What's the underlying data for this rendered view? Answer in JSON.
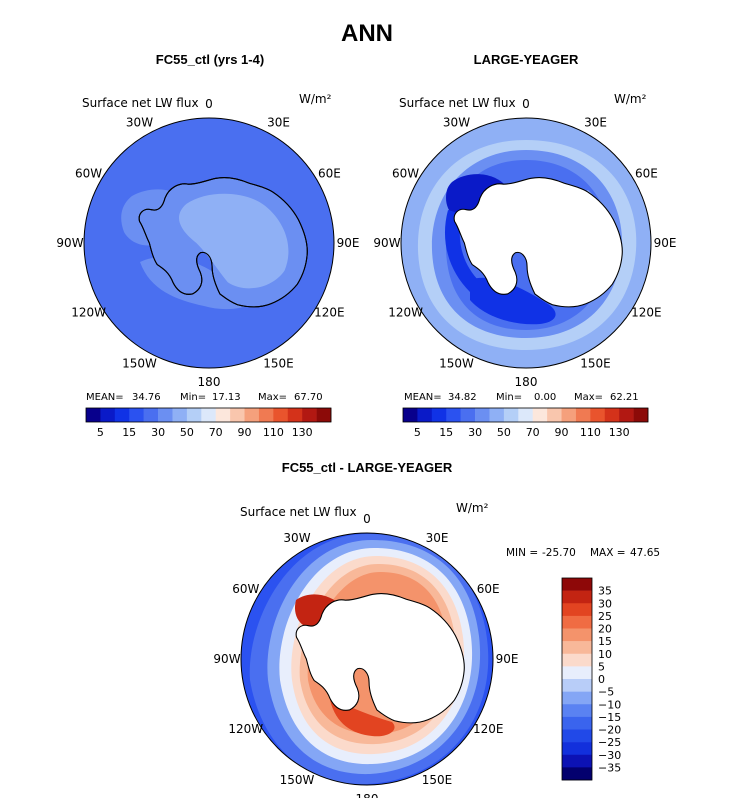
{
  "figure_title": "ANN",
  "colors": {
    "antarctica_fill": "#ffffff",
    "coast": "#000000",
    "levels_abs": [
      "#08008c",
      "#0a1ac8",
      "#1032e6",
      "#2b52f0",
      "#4a6ff0",
      "#6b8ff2",
      "#8fb0f5",
      "#b4cff7",
      "#dce8fa",
      "#fce7dc",
      "#f9c6ad",
      "#f5a07c",
      "#f07a52",
      "#e9542d",
      "#d4321a",
      "#b21812",
      "#8c0a08"
    ],
    "levels_diff": [
      "#03006e",
      "#0c12b4",
      "#1230dc",
      "#2149e8",
      "#3a64ee",
      "#5a82f2",
      "#84a6f5",
      "#b8cdf8",
      "#e8eefc",
      "#fbdacb",
      "#f8b899",
      "#f4936b",
      "#f06c43",
      "#e24421",
      "#c32412",
      "#8e0808"
    ]
  },
  "chart_data": [
    {
      "type": "heatmap",
      "title": "FC55_ctl (yrs 1-4)",
      "variable": "Surface net LW flux",
      "units": "W/m²",
      "projection": "south polar stereographic",
      "lon_labels": [
        "0",
        "30E",
        "60E",
        "90E",
        "120E",
        "150E",
        "180",
        "150W",
        "120W",
        "90W",
        "60W",
        "30W"
      ],
      "stats": {
        "mean_label": "MEAN=",
        "mean": "34.76",
        "min_label": "Min=",
        "min": "17.13",
        "max_label": "Max=",
        "max": "67.70"
      },
      "colorbar_ticks": [
        "5",
        "15",
        "30",
        "50",
        "70",
        "90",
        "110",
        "130"
      ],
      "field": {
        "background": 7,
        "antarctica": 8,
        "zones": [
          [
            6,
            "weddell"
          ],
          [
            8,
            "interior"
          ]
        ]
      }
    },
    {
      "type": "heatmap",
      "title": "LARGE-YEAGER",
      "variable": "Surface net LW flux",
      "units": "W/m²",
      "projection": "south polar stereographic",
      "lon_labels": [
        "0",
        "30E",
        "60E",
        "90E",
        "120E",
        "150E",
        "180",
        "150W",
        "120W",
        "90W",
        "60W",
        "30W"
      ],
      "stats": {
        "mean_label": "MEAN=",
        "mean": "34.82",
        "min_label": "Min=",
        "min": "0.00",
        "max_label": "Max=",
        "max": "62.21"
      },
      "colorbar_ticks": [
        "5",
        "15",
        "30",
        "50",
        "70",
        "90",
        "110",
        "130"
      ],
      "field": {
        "background": 7
      }
    },
    {
      "type": "heatmap",
      "title": "FC55_ctl - LARGE-YEAGER",
      "variable": "Surface net LW flux",
      "units": "W/m²",
      "projection": "south polar stereographic",
      "lon_labels": [
        "0",
        "30E",
        "60E",
        "90E",
        "120E",
        "150E",
        "180",
        "150W",
        "120W",
        "90W",
        "60W",
        "30W"
      ],
      "minmax": {
        "min_label": "MIN =",
        "min": "-25.70",
        "max_label": "MAX =",
        "max": "47.65"
      },
      "colorbar_ticks": [
        "35",
        "30",
        "25",
        "20",
        "15",
        "10",
        "5",
        "0",
        "−5",
        "−10",
        "−15",
        "−20",
        "−25",
        "−30",
        "−35"
      ],
      "field": {
        "background": 3
      }
    }
  ]
}
